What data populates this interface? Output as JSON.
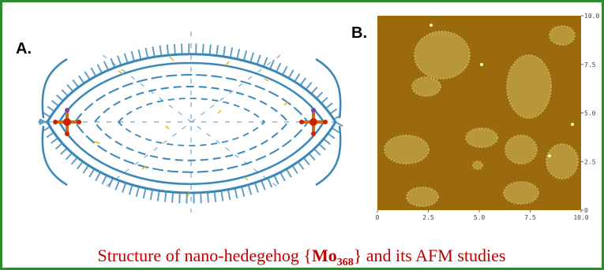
{
  "panel_a": {
    "label": "A."
  },
  "panel_b": {
    "label": "B.",
    "x_ticks": [
      "0",
      "2.5",
      "5.0",
      "7.5",
      "10.0"
    ],
    "y_ticks": [
      "0",
      "2.5",
      "5.0",
      "7.5",
      "10.0"
    ]
  },
  "caption": {
    "text_before": "Structure of nano-hedegehog {",
    "bold": "Mo",
    "subscript": "368",
    "text_after": "} and its AFM studies"
  }
}
